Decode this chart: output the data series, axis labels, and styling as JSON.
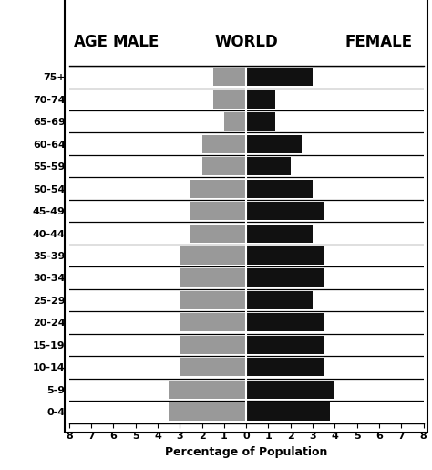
{
  "age_groups": [
    "75+",
    "70-74",
    "65-69",
    "60-64",
    "55-59",
    "50-54",
    "45-49",
    "40-44",
    "35-39",
    "30-34",
    "25-29",
    "20-24",
    "15-19",
    "10-14",
    "5-9",
    "0-4"
  ],
  "male": [
    1.5,
    1.5,
    1.0,
    2.0,
    2.0,
    2.5,
    2.5,
    2.5,
    3.0,
    3.0,
    3.0,
    3.0,
    3.0,
    3.0,
    3.5,
    3.5
  ],
  "female": [
    3.0,
    1.3,
    1.3,
    2.5,
    2.0,
    3.0,
    3.5,
    3.0,
    3.5,
    3.5,
    3.0,
    3.5,
    3.5,
    3.5,
    4.0,
    3.8
  ],
  "male_color": "#999999",
  "female_color": "#111111",
  "bg_color": "#ffffff",
  "title_age": "AGE",
  "title_male": "MALE",
  "title_world": "WORLD",
  "title_female": "FEMALE",
  "xlabel": "Percentage of Population",
  "xlim": 8,
  "header_fontsize": 12,
  "label_fontsize": 8,
  "tick_fontsize": 8
}
